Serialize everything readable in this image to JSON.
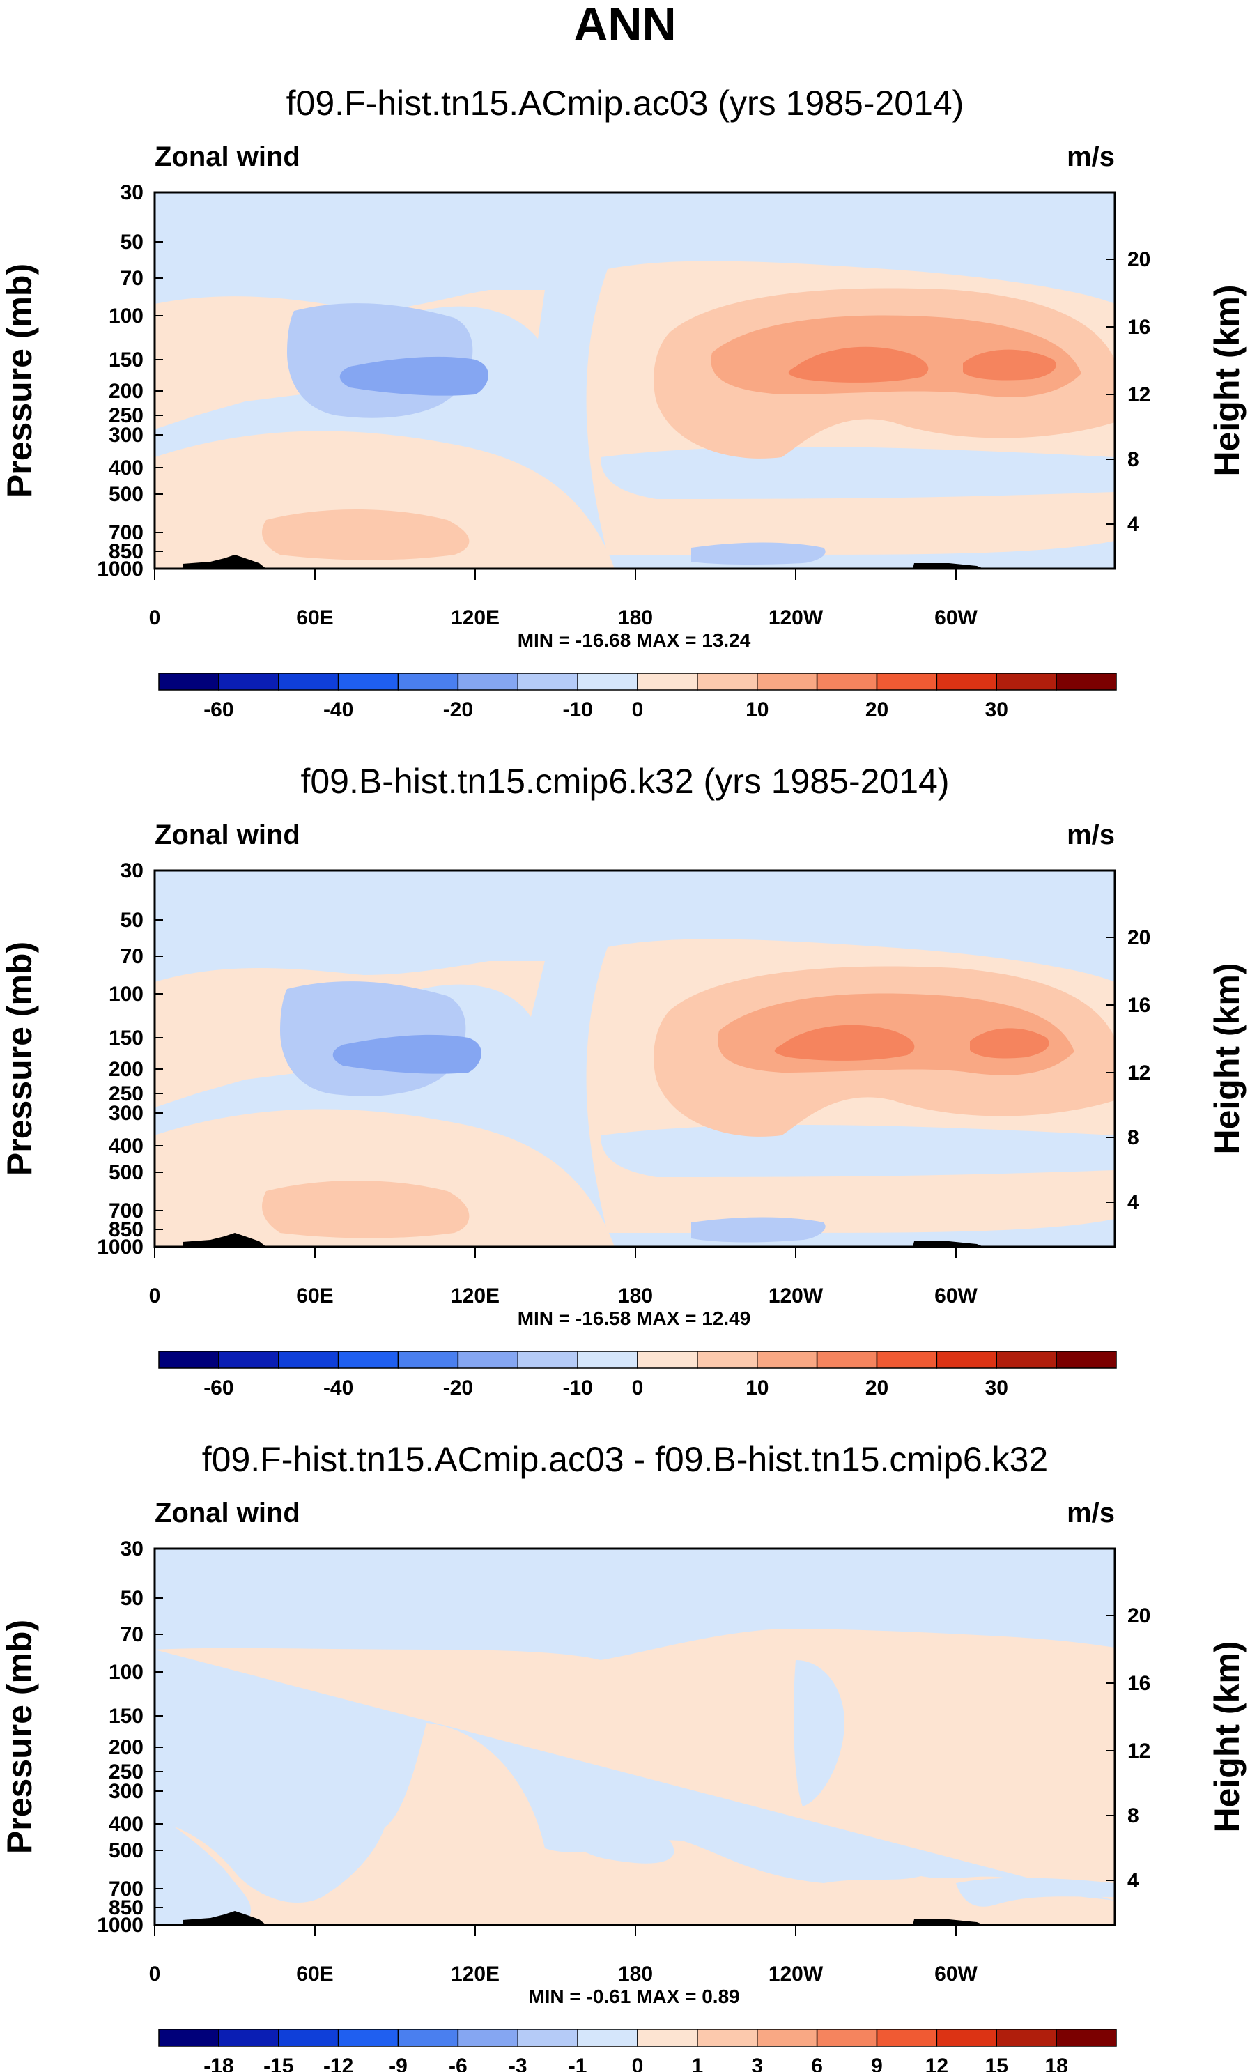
{
  "figure": {
    "title": "ANN"
  },
  "palette": {
    "colors": [
      "#00007a",
      "#0a1eb4",
      "#0f3fd9",
      "#1f5ff0",
      "#4a7fef",
      "#85a6f2",
      "#b5cbf7",
      "#d5e6fb",
      "#fde4d2",
      "#fcc9ad",
      "#f9a884",
      "#f5845e",
      "#f05a33",
      "#dc3314",
      "#b01e0c",
      "#7b0000"
    ],
    "land": "#000000"
  },
  "chart_data": [
    {
      "type": "contour",
      "title": "f09.F-hist.tn15.ACmip.ac03 (yrs 1985-2014)",
      "variable": "Zonal wind",
      "units": "m/s",
      "ylabel": "Pressure (mb)",
      "ylabel_right": "Height (km)",
      "x_ticks": [
        "0",
        "60E",
        "120E",
        "180",
        "120W",
        "60W"
      ],
      "y_ticks": [
        "30",
        "50",
        "70",
        "100",
        "150",
        "200",
        "250",
        "300",
        "400",
        "500",
        "700",
        "850",
        "1000"
      ],
      "y_ticks_right": [
        "20",
        "16",
        "12",
        "8",
        "4"
      ],
      "stats": "MIN = -16.68  MAX =  13.24",
      "colorbar_labels": [
        "-60",
        "-40",
        "-20",
        "-10",
        "0",
        "10",
        "20",
        "30"
      ]
    },
    {
      "type": "contour",
      "title": "f09.B-hist.tn15.cmip6.k32 (yrs 1985-2014)",
      "variable": "Zonal wind",
      "units": "m/s",
      "ylabel": "Pressure (mb)",
      "ylabel_right": "Height (km)",
      "x_ticks": [
        "0",
        "60E",
        "120E",
        "180",
        "120W",
        "60W"
      ],
      "y_ticks": [
        "30",
        "50",
        "70",
        "100",
        "150",
        "200",
        "250",
        "300",
        "400",
        "500",
        "700",
        "850",
        "1000"
      ],
      "y_ticks_right": [
        "20",
        "16",
        "12",
        "8",
        "4"
      ],
      "stats": "MIN = -16.58  MAX =  12.49",
      "colorbar_labels": [
        "-60",
        "-40",
        "-20",
        "-10",
        "0",
        "10",
        "20",
        "30"
      ]
    },
    {
      "type": "contour",
      "title": "f09.F-hist.tn15.ACmip.ac03 - f09.B-hist.tn15.cmip6.k32",
      "variable": "Zonal wind",
      "units": "m/s",
      "ylabel": "Pressure (mb)",
      "ylabel_right": "Height (km)",
      "x_ticks": [
        "0",
        "60E",
        "120E",
        "180",
        "120W",
        "60W"
      ],
      "y_ticks": [
        "30",
        "50",
        "70",
        "100",
        "150",
        "200",
        "250",
        "300",
        "400",
        "500",
        "700",
        "850",
        "1000"
      ],
      "y_ticks_right": [
        "20",
        "16",
        "12",
        "8",
        "4"
      ],
      "stats": "MIN = -0.61  MAX =  0.89",
      "colorbar_labels": [
        "-18",
        "-15",
        "-12",
        "-9",
        "-6",
        "-3",
        "-1",
        "0",
        "1",
        "3",
        "6",
        "9",
        "12",
        "15",
        "18"
      ]
    }
  ]
}
